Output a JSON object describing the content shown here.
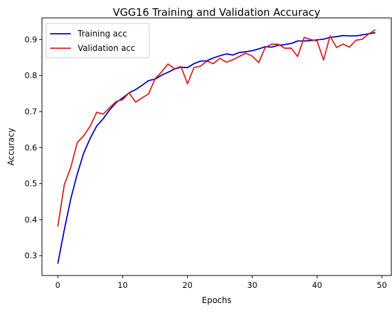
{
  "chart_data": {
    "type": "line",
    "title": "VGG16 Training and Validation Accuracy",
    "xlabel": "Epochs",
    "ylabel": "Accuracy",
    "xlim": [
      -2.45,
      51.45
    ],
    "ylim": [
      0.245,
      0.96
    ],
    "xticks": [
      0,
      10,
      20,
      30,
      40,
      50
    ],
    "yticks": [
      0.3,
      0.4,
      0.5,
      0.6,
      0.7,
      0.8,
      0.9
    ],
    "grid": false,
    "legend_position": "upper left",
    "x": [
      0,
      1,
      2,
      3,
      4,
      5,
      6,
      7,
      8,
      9,
      10,
      11,
      12,
      13,
      14,
      15,
      16,
      17,
      18,
      19,
      20,
      21,
      22,
      23,
      24,
      25,
      26,
      27,
      28,
      29,
      30,
      31,
      32,
      33,
      34,
      35,
      36,
      37,
      38,
      39,
      40,
      41,
      42,
      43,
      44,
      45,
      46,
      47,
      48,
      49
    ],
    "series": [
      {
        "name": "Training acc",
        "color": "#0000bf",
        "values": [
          0.278,
          0.372,
          0.458,
          0.527,
          0.585,
          0.626,
          0.66,
          0.68,
          0.705,
          0.725,
          0.738,
          0.752,
          0.761,
          0.773,
          0.786,
          0.79,
          0.801,
          0.809,
          0.818,
          0.823,
          0.822,
          0.833,
          0.84,
          0.841,
          0.849,
          0.855,
          0.86,
          0.857,
          0.864,
          0.866,
          0.869,
          0.874,
          0.88,
          0.879,
          0.884,
          0.886,
          0.889,
          0.896,
          0.896,
          0.897,
          0.899,
          0.901,
          0.906,
          0.908,
          0.911,
          0.91,
          0.91,
          0.913,
          0.916,
          0.919
        ]
      },
      {
        "name": "Validation acc",
        "color": "#d62020",
        "values": [
          0.381,
          0.497,
          0.545,
          0.614,
          0.633,
          0.66,
          0.698,
          0.693,
          0.711,
          0.728,
          0.733,
          0.752,
          0.726,
          0.738,
          0.749,
          0.791,
          0.81,
          0.832,
          0.819,
          0.825,
          0.777,
          0.822,
          0.826,
          0.84,
          0.833,
          0.848,
          0.837,
          0.844,
          0.853,
          0.862,
          0.854,
          0.836,
          0.878,
          0.887,
          0.887,
          0.876,
          0.876,
          0.853,
          0.906,
          0.9,
          0.896,
          0.843,
          0.91,
          0.878,
          0.887,
          0.879,
          0.898,
          0.901,
          0.916,
          0.927
        ]
      }
    ]
  }
}
